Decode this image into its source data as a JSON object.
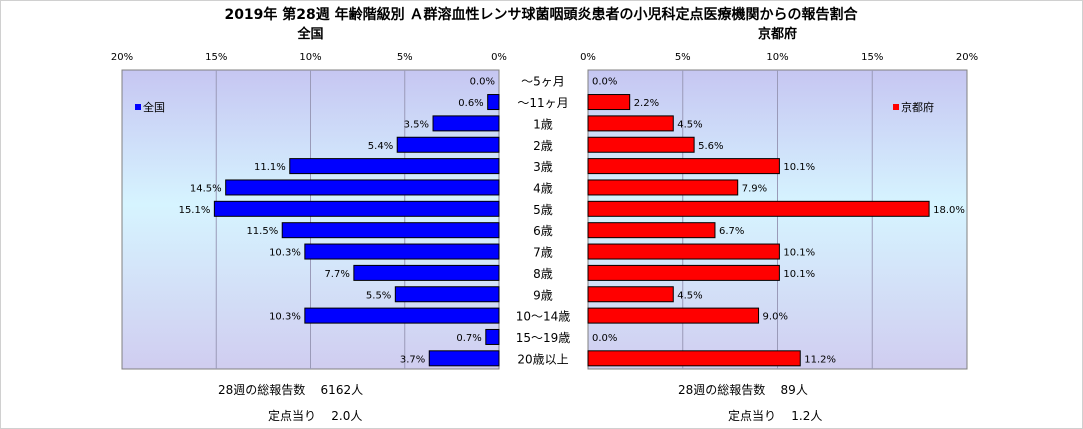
{
  "chart_data": {
    "type": "bar",
    "orientation": "horizontal-butterfly",
    "title": "2019年 第28週 年齢階級別 Ａ群溶血性レンサ球菌咽頭炎患者の小児科定点医療機関からの報告割合",
    "categories": [
      "～5ヶ月",
      "～11ヶ月",
      "1歳",
      "2歳",
      "3歳",
      "4歳",
      "5歳",
      "6歳",
      "7歳",
      "8歳",
      "9歳",
      "10～14歳",
      "15～19歳",
      "20歳以上"
    ],
    "value_labels_suffix": "%",
    "xlim": [
      0,
      20
    ],
    "x_ticks": [
      0,
      5,
      10,
      15,
      20
    ],
    "x_tick_labels": [
      "0%",
      "5%",
      "10%",
      "15%",
      "20%"
    ],
    "grid": true,
    "panels": [
      {
        "subtitle": "全国",
        "direction": "left",
        "series": [
          {
            "name": "全国",
            "color": "#0000ff",
            "values": [
              0.0,
              0.6,
              3.5,
              5.4,
              11.1,
              14.5,
              15.1,
              11.5,
              10.3,
              7.7,
              5.5,
              10.3,
              0.7,
              3.7
            ],
            "labels": [
              "0.0%",
              "0.6%",
              "3.5%",
              "5.4%",
              "11.1%",
              "14.5%",
              "15.1%",
              "11.5%",
              "10.3%",
              "7.7%",
              "5.5%",
              "10.3%",
              "0.7%",
              "3.7%"
            ]
          }
        ],
        "legend": "top-left"
      },
      {
        "subtitle": "京都府",
        "direction": "right",
        "series": [
          {
            "name": "京都府",
            "color": "#ff0000",
            "values": [
              0.0,
              2.2,
              4.5,
              5.6,
              10.1,
              7.9,
              18.0,
              6.7,
              10.1,
              10.1,
              4.5,
              9.0,
              0.0,
              11.2
            ],
            "labels": [
              "0.0%",
              "2.2%",
              "4.5%",
              "5.6%",
              "10.1%",
              "7.9%",
              "18.0%",
              "6.7%",
              "10.1%",
              "10.1%",
              "4.5%",
              "9.0%",
              "0.0%",
              "11.2%"
            ]
          }
        ],
        "legend": "top-right"
      }
    ]
  },
  "footer": {
    "left": {
      "total_label": "28週の総報告数",
      "total_value": "6162人",
      "per_label": "定点当り",
      "per_value": "2.0人"
    },
    "right": {
      "total_label": "28週の総報告数",
      "total_value": "89人",
      "per_label": "定点当り",
      "per_value": "1.2人"
    }
  }
}
